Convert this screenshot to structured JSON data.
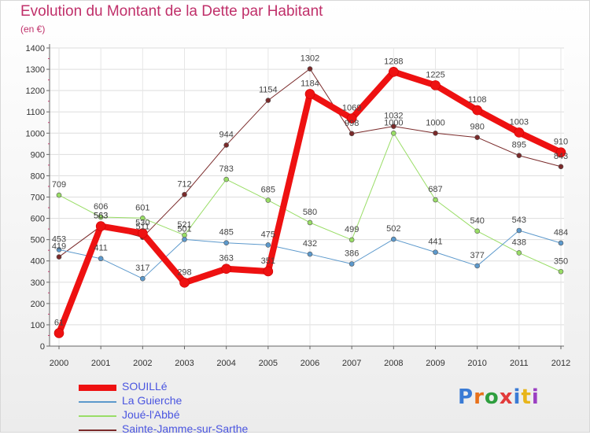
{
  "title": "Evolution du Montant de la Dette par Habitant",
  "subtitle": "(en €)",
  "logo": {
    "text": "Proxiti",
    "colors": [
      "#3a7bd5",
      "#e8711a",
      "#2e9e3e",
      "#e23b3b",
      "#3a7bd5",
      "#e8b51a",
      "#9b3fc2"
    ]
  },
  "chart_data": {
    "type": "line",
    "x": [
      "2000",
      "2001",
      "2002",
      "2003",
      "2004",
      "2005",
      "2006",
      "2007",
      "2008",
      "2009",
      "2010",
      "2011",
      "2012"
    ],
    "ylim": [
      0,
      1400
    ],
    "yticks": [
      "0",
      "100",
      "200",
      "300",
      "400",
      "500",
      "600",
      "700",
      "800",
      "900",
      "1000",
      "1100",
      "1200",
      "1300",
      "1400"
    ],
    "grid": true,
    "legend_position": "bottom-left",
    "series": [
      {
        "name": "Sainte-Jamme-sur-Sarthe",
        "color": "#7a2a2a",
        "width": 1,
        "values": [
          419,
          563,
          511,
          712,
          944,
          1154,
          1302,
          998,
          1032,
          1000,
          980,
          895,
          843
        ],
        "labels": [
          "419",
          "563",
          "511",
          "712",
          "944",
          "1154",
          "1302",
          "998",
          "1032",
          "1000",
          "980",
          "895",
          "843"
        ]
      },
      {
        "name": "Joué-l'Abbé",
        "color": "#99dd66",
        "width": 1,
        "values": [
          709,
          606,
          601,
          521,
          783,
          685,
          580,
          499,
          1000,
          687,
          540,
          438,
          350
        ],
        "labels": [
          "709",
          "606",
          "601",
          "521",
          "783",
          "685",
          "580",
          "499",
          "1000",
          "687",
          "540",
          "438",
          "350"
        ]
      },
      {
        "name": "La Guierche",
        "color": "#5c99cc",
        "width": 1,
        "values": [
          453,
          411,
          317,
          501,
          485,
          475,
          432,
          386,
          502,
          441,
          377,
          543,
          484
        ],
        "labels": [
          "453",
          "411",
          "317",
          "501",
          "485",
          "475",
          "432",
          "386",
          "502",
          "441",
          "377",
          "543",
          "484"
        ]
      },
      {
        "name": "SOUILLé",
        "color": "#ee1111",
        "width": 8,
        "values": [
          61,
          563,
          530,
          298,
          363,
          351,
          1184,
          1069,
          1288,
          1225,
          1108,
          1003,
          910
        ],
        "labels": [
          "61",
          "563",
          "530",
          "298",
          "363",
          "351",
          "1184",
          "1069",
          "1288",
          "1225",
          "1108",
          "1003",
          "910"
        ]
      }
    ],
    "legend_order": [
      3,
      2,
      1,
      0
    ]
  }
}
